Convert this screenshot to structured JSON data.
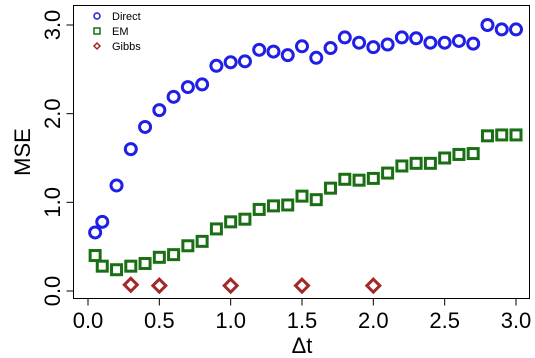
{
  "chart_data": {
    "type": "scatter",
    "xlabel": "Δt",
    "ylabel": "MSE",
    "xlim": [
      0.0,
      3.0
    ],
    "ylim": [
      0.0,
      3.0
    ],
    "x_ticks": [
      "0.0",
      "0.5",
      "1.0",
      "1.5",
      "2.0",
      "2.5",
      "3.0"
    ],
    "y_ticks": [
      "0.0",
      "1.0",
      "2.0",
      "3.0"
    ],
    "grid": false,
    "legend_position": "top-left",
    "series": [
      {
        "name": "Direct",
        "marker": "circle",
        "color": "#1f1fe6",
        "x": [
          0.05,
          0.1,
          0.2,
          0.3,
          0.4,
          0.5,
          0.6,
          0.7,
          0.8,
          0.9,
          1.0,
          1.1,
          1.2,
          1.3,
          1.4,
          1.5,
          1.6,
          1.7,
          1.8,
          1.9,
          2.0,
          2.1,
          2.2,
          2.3,
          2.4,
          2.5,
          2.6,
          2.7,
          2.8,
          2.9,
          3.0
        ],
        "y": [
          0.66,
          0.78,
          1.19,
          1.6,
          1.85,
          2.04,
          2.19,
          2.3,
          2.33,
          2.54,
          2.58,
          2.59,
          2.72,
          2.7,
          2.66,
          2.76,
          2.63,
          2.74,
          2.86,
          2.8,
          2.75,
          2.78,
          2.86,
          2.85,
          2.8,
          2.8,
          2.82,
          2.79,
          3.0,
          2.95,
          2.95
        ]
      },
      {
        "name": "EM",
        "marker": "square",
        "color": "#1a6e14",
        "x": [
          0.05,
          0.1,
          0.2,
          0.3,
          0.4,
          0.5,
          0.6,
          0.7,
          0.8,
          0.9,
          1.0,
          1.1,
          1.2,
          1.3,
          1.4,
          1.5,
          1.6,
          1.7,
          1.8,
          1.9,
          2.0,
          2.1,
          2.2,
          2.3,
          2.4,
          2.5,
          2.6,
          2.7,
          2.8,
          2.9,
          3.0
        ],
        "y": [
          0.4,
          0.28,
          0.24,
          0.28,
          0.31,
          0.38,
          0.41,
          0.51,
          0.56,
          0.7,
          0.78,
          0.81,
          0.92,
          0.96,
          0.97,
          1.07,
          1.03,
          1.16,
          1.26,
          1.25,
          1.27,
          1.33,
          1.41,
          1.44,
          1.44,
          1.5,
          1.54,
          1.55,
          1.75,
          1.76,
          1.76
        ]
      },
      {
        "name": "Gibbs",
        "marker": "diamond",
        "color": "#a3282a",
        "x": [
          0.3,
          0.5,
          1.0,
          1.5,
          2.0
        ],
        "y": [
          0.07,
          0.06,
          0.06,
          0.06,
          0.06
        ]
      }
    ]
  }
}
